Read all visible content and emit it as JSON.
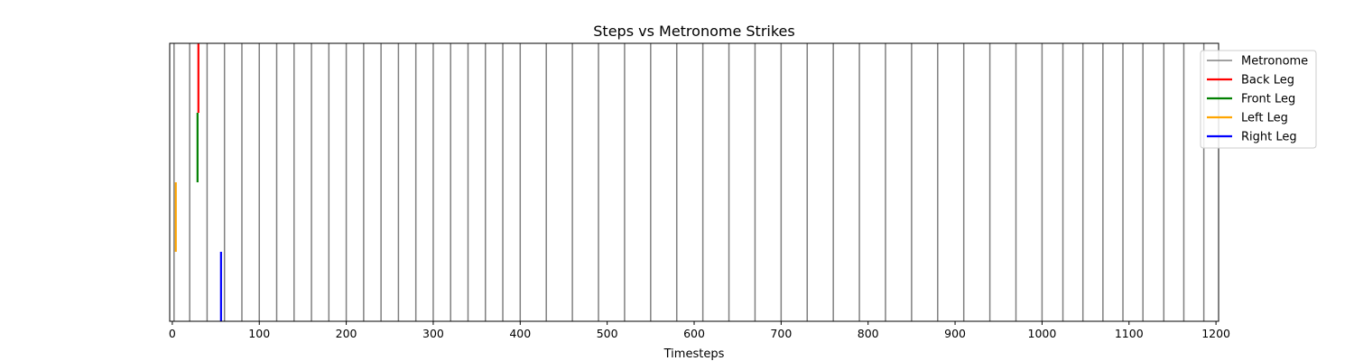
{
  "chart_data": {
    "type": "event-plot",
    "title": "Steps vs Metronome Strikes",
    "xlabel": "Timesteps",
    "ylabel": "",
    "xlim": [
      -3,
      1203
    ],
    "x_ticks": [
      0,
      100,
      200,
      300,
      400,
      500,
      600,
      700,
      800,
      900,
      1000,
      1100,
      1200
    ],
    "grid": false,
    "legend_position": "upper-right-outside",
    "series": [
      {
        "name": "Metronome",
        "color": "#808080",
        "row": "full",
        "x": [
          2,
          20,
          40,
          60,
          80,
          100,
          120,
          140,
          160,
          180,
          200,
          220,
          240,
          260,
          280,
          300,
          320,
          340,
          360,
          380,
          400,
          430,
          460,
          490,
          520,
          550,
          580,
          610,
          640,
          670,
          700,
          730,
          760,
          790,
          820,
          850,
          880,
          910,
          940,
          970,
          1000,
          1024,
          1047,
          1070,
          1093,
          1116,
          1140,
          1163,
          1186
        ]
      },
      {
        "name": "Back Leg",
        "color": "#ff0000",
        "row": 4,
        "x": [
          30
        ]
      },
      {
        "name": "Front Leg",
        "color": "#008000",
        "row": 3,
        "x": [
          29
        ]
      },
      {
        "name": "Left Leg",
        "color": "#ffa500",
        "row": 2,
        "x": [
          4
        ]
      },
      {
        "name": "Right Leg",
        "color": "#0000ff",
        "row": 1,
        "x": [
          56
        ]
      }
    ]
  }
}
